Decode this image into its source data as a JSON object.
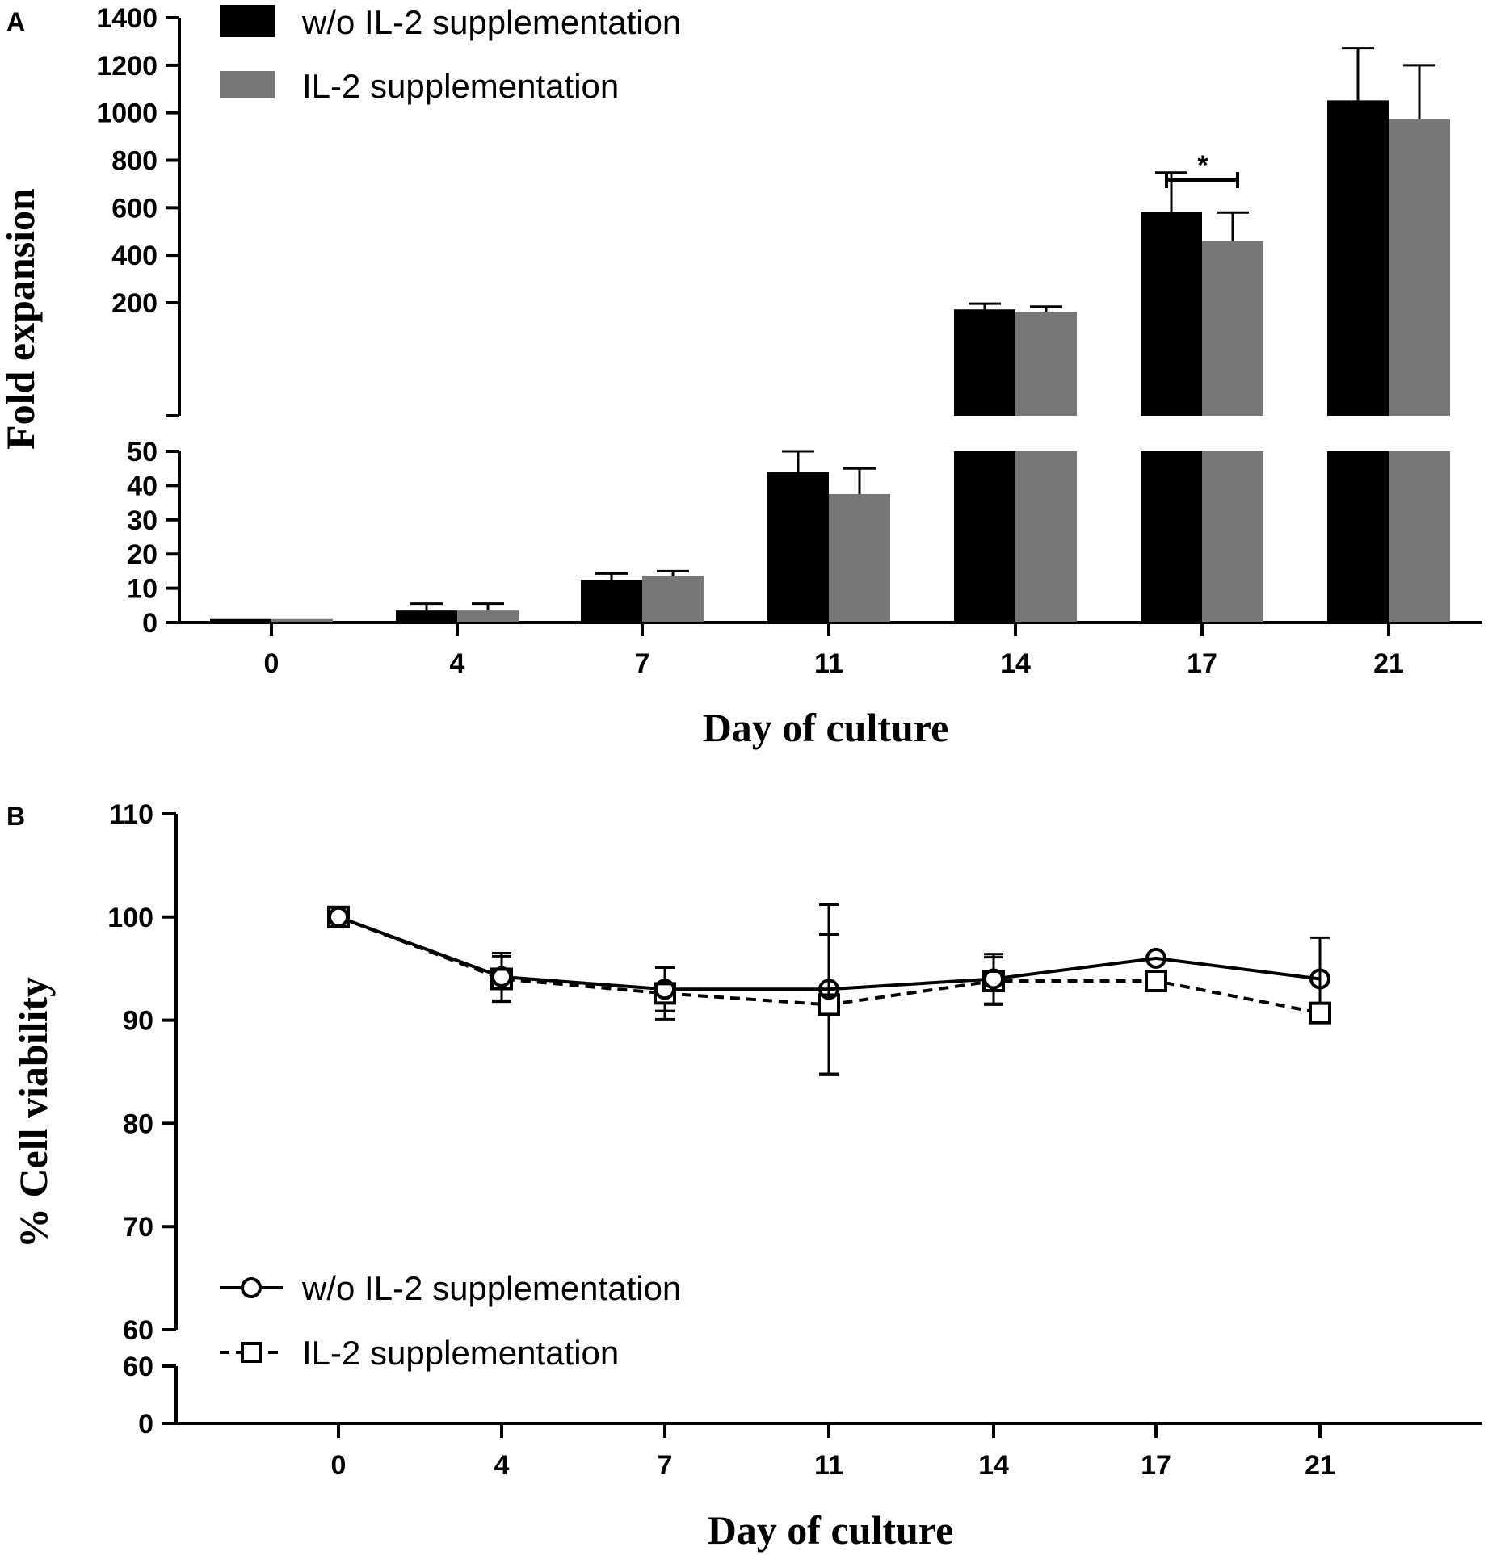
{
  "chart_data": [
    {
      "panel": "A",
      "type": "bar",
      "xlabel": "Day of culture",
      "ylabel": "Fold expansion",
      "categories": [
        "0",
        "4",
        "7",
        "11",
        "14",
        "17",
        "21"
      ],
      "y_broken": true,
      "ylim_lower": [
        0,
        50
      ],
      "ylim_upper": [
        50,
        1400
      ],
      "yticks_lower": [
        "0",
        "10",
        "20",
        "30",
        "40",
        "50"
      ],
      "yticks_upper": [
        "200",
        "400",
        "600",
        "800",
        "1000",
        "1200",
        "1400"
      ],
      "legend_position": "top-left",
      "series": [
        {
          "name": "w/o IL-2 supplementation",
          "color": "#000000",
          "values": [
            1,
            3.5,
            12.5,
            44,
            172,
            583,
            1052
          ],
          "errors": [
            0,
            2,
            1.8,
            6,
            24,
            165,
            220
          ]
        },
        {
          "name": "IL-2 supplementation",
          "color": "#777777",
          "values": [
            1,
            3.5,
            13.5,
            37.5,
            162,
            460,
            972
          ],
          "errors": [
            0,
            2,
            1.5,
            7.5,
            22,
            120,
            228
          ]
        }
      ],
      "annotations": [
        {
          "text": "*",
          "category": "17"
        }
      ]
    },
    {
      "panel": "B",
      "type": "line",
      "xlabel": "Day of culture",
      "ylabel": "% Cell viability",
      "x": [
        "0",
        "4",
        "7",
        "11",
        "14",
        "17",
        "21"
      ],
      "y_broken": true,
      "ylim_upper": [
        60,
        110
      ],
      "ylim_lower": [
        0,
        60
      ],
      "yticks_upper": [
        "60",
        "70",
        "80",
        "90",
        "100",
        "110"
      ],
      "yticks_lower": [
        "0",
        "60"
      ],
      "legend_position": "bottom-left",
      "series": [
        {
          "name": "w/o IL-2 supplementation",
          "marker": "circle",
          "linestyle": "solid",
          "values": [
            100,
            94.2,
            93,
            93,
            94,
            96,
            94
          ],
          "errors": [
            0,
            2.3,
            2.1,
            8.2,
            2.4,
            0,
            4
          ]
        },
        {
          "name": "IL-2 supplementation",
          "marker": "square",
          "linestyle": "dashed",
          "values": [
            100,
            94,
            92.6,
            91.5,
            93.8,
            93.8,
            90.7
          ],
          "errors": [
            0,
            2.2,
            2.5,
            6.8,
            2.3,
            0,
            0
          ]
        }
      ]
    }
  ]
}
